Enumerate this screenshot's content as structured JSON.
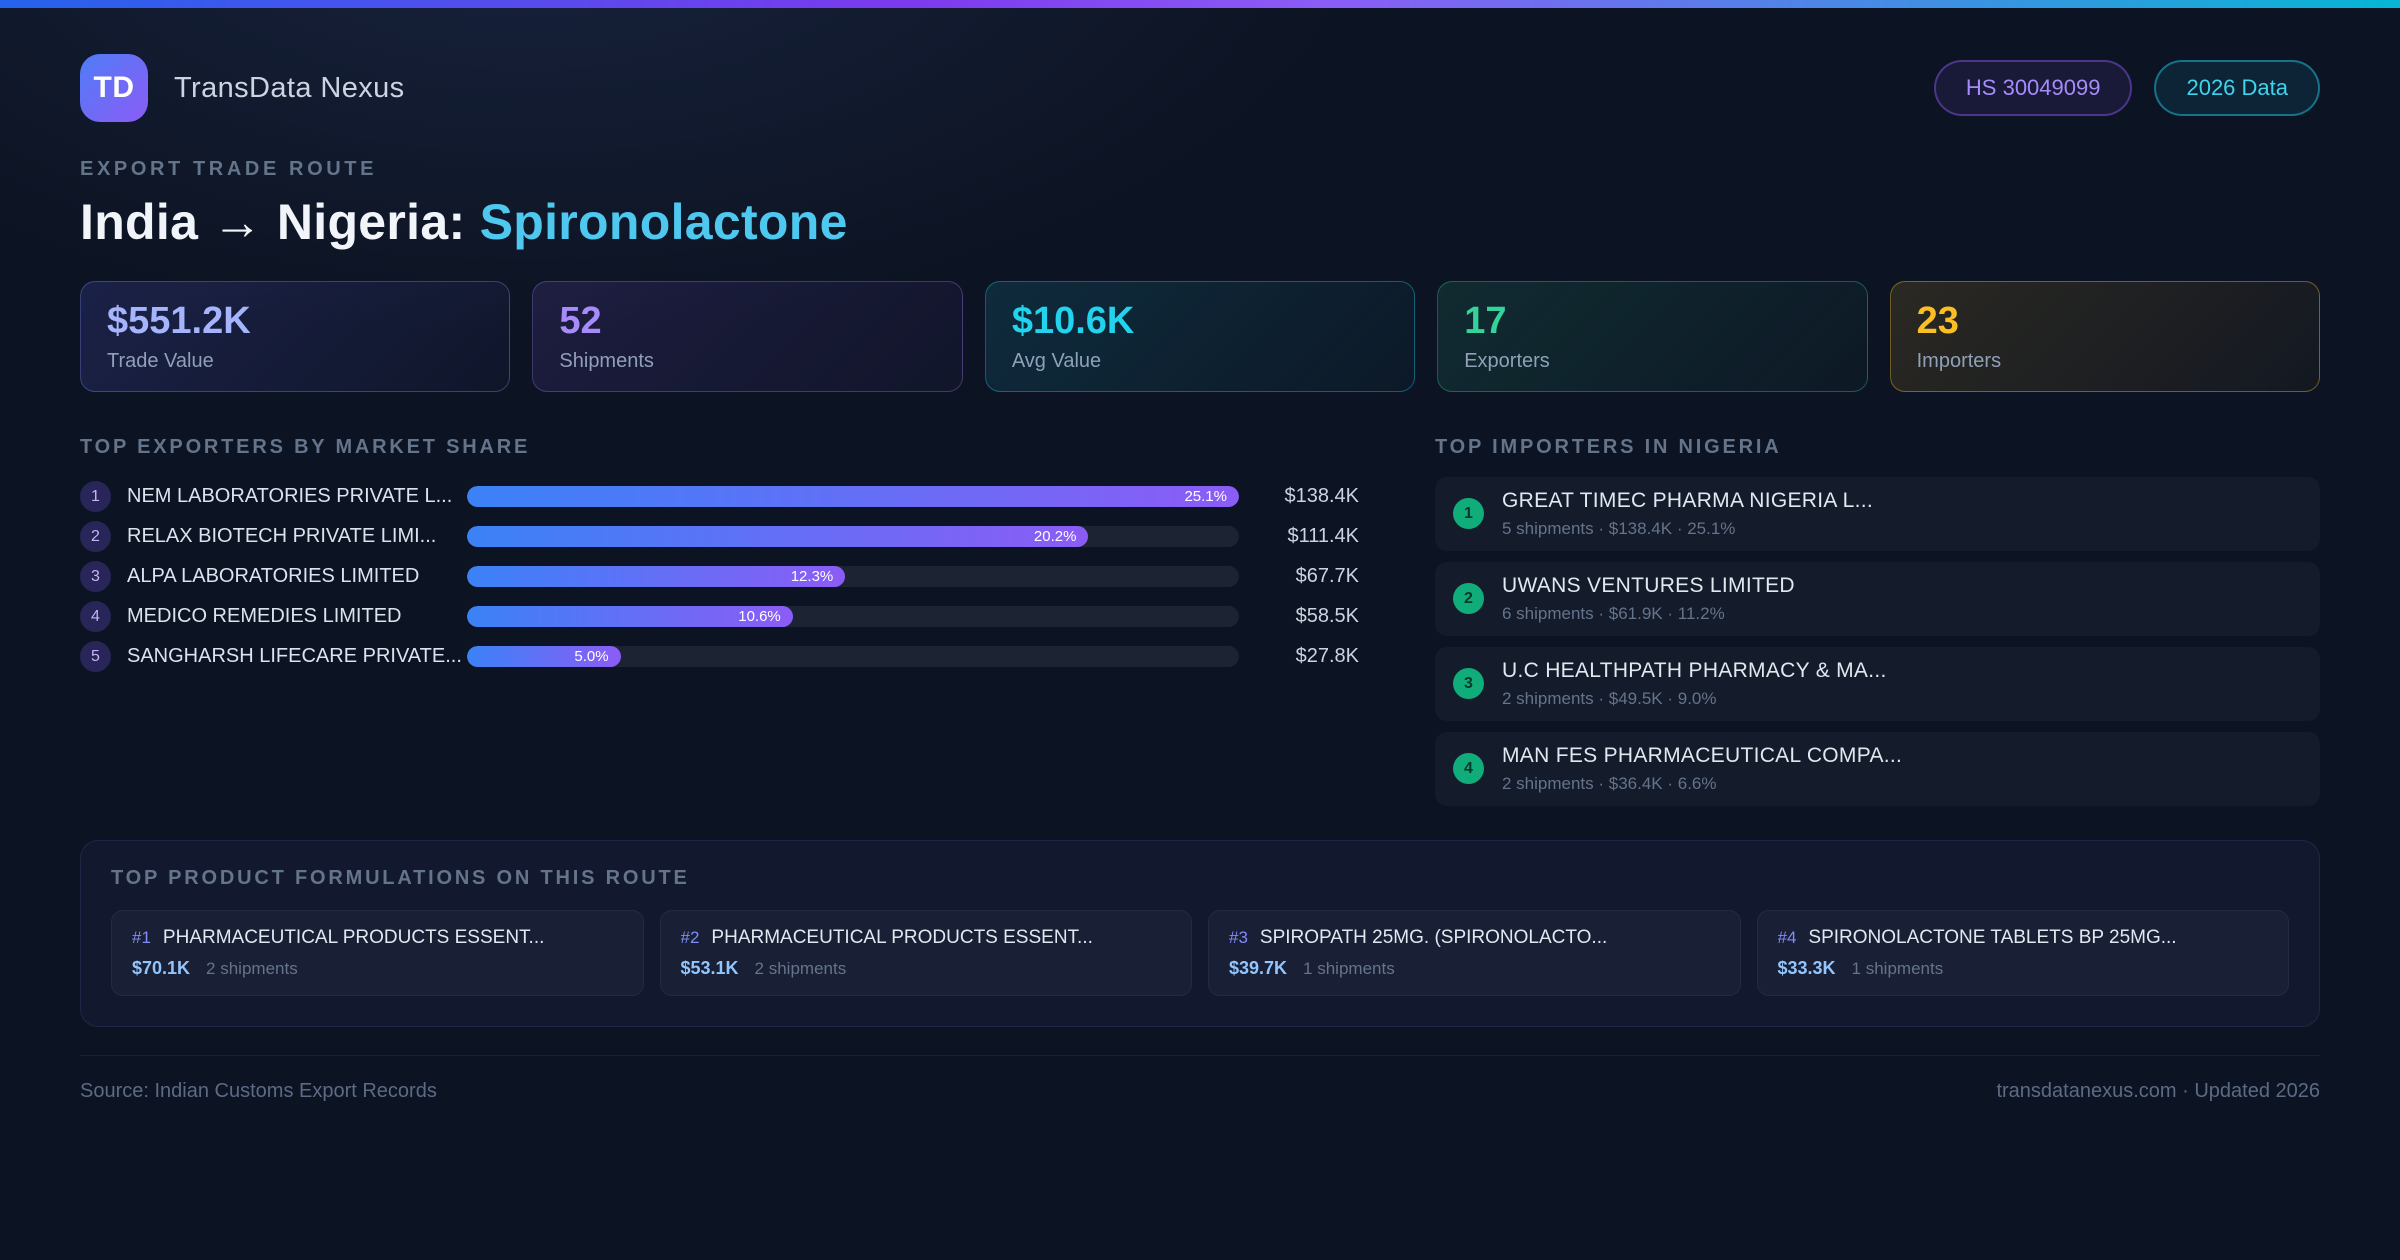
{
  "colors": {
    "accent_cyan": "#4fc8f0",
    "bar_gradient_start": "#3b82f6",
    "bar_gradient_end": "#8b5cf6",
    "stat_indigo": "#a5b4fc",
    "stat_purple": "#a78bfa",
    "stat_cyan": "#22d3ee",
    "stat_green": "#34d399",
    "stat_amber": "#fbbf24",
    "importer_rank_green": "#10b981"
  },
  "header": {
    "logo_text": "TD",
    "app_name": "TransData Nexus",
    "badges": [
      {
        "label": "HS 30049099"
      },
      {
        "label": "2026 Data"
      }
    ]
  },
  "hero": {
    "eyebrow": "EXPORT TRADE ROUTE",
    "title_main": "India → Nigeria: ",
    "title_accent": "Spironolactone"
  },
  "stats": [
    {
      "value": "$551.2K",
      "label": "Trade Value"
    },
    {
      "value": "52",
      "label": "Shipments"
    },
    {
      "value": "$10.6K",
      "label": "Avg Value"
    },
    {
      "value": "17",
      "label": "Exporters"
    },
    {
      "value": "23",
      "label": "Importers"
    }
  ],
  "exporters": {
    "title": "TOP EXPORTERS BY MARKET SHARE",
    "rows": [
      {
        "rank": "1",
        "name": "NEM LABORATORIES PRIVATE L...",
        "share_pct": 25.1,
        "share_label": "25.1%",
        "value": "$138.4K"
      },
      {
        "rank": "2",
        "name": "RELAX BIOTECH PRIVATE LIMI...",
        "share_pct": 20.2,
        "share_label": "20.2%",
        "value": "$111.4K"
      },
      {
        "rank": "3",
        "name": "ALPA LABORATORIES LIMITED",
        "share_pct": 12.3,
        "share_label": "12.3%",
        "value": "$67.7K"
      },
      {
        "rank": "4",
        "name": "MEDICO REMEDIES LIMITED",
        "share_pct": 10.6,
        "share_label": "10.6%",
        "value": "$58.5K"
      },
      {
        "rank": "5",
        "name": "SANGHARSH LIFECARE PRIVATE...",
        "share_pct": 5.0,
        "share_label": "5.0%",
        "value": "$27.8K"
      }
    ]
  },
  "importers": {
    "title": "TOP IMPORTERS IN NIGERIA",
    "rows": [
      {
        "rank": "1",
        "name": "GREAT TIMEC PHARMA NIGERIA L...",
        "details": "5 shipments · $138.4K · 25.1%"
      },
      {
        "rank": "2",
        "name": "UWANS VENTURES LIMITED",
        "details": "6 shipments · $61.9K · 11.2%"
      },
      {
        "rank": "3",
        "name": "U.C HEALTHPATH PHARMACY & MA...",
        "details": "2 shipments · $49.5K · 9.0%"
      },
      {
        "rank": "4",
        "name": "MAN FES PHARMACEUTICAL COMPA...",
        "details": "2 shipments · $36.4K · 6.6%"
      }
    ]
  },
  "products": {
    "title": "TOP PRODUCT FORMULATIONS ON THIS ROUTE",
    "cards": [
      {
        "rank": "#1",
        "name": "PHARMACEUTICAL PRODUCTS ESSENT...",
        "value": "$70.1K",
        "shipments": "2 shipments"
      },
      {
        "rank": "#2",
        "name": "PHARMACEUTICAL PRODUCTS ESSENT...",
        "value": "$53.1K",
        "shipments": "2 shipments"
      },
      {
        "rank": "#3",
        "name": "SPIROPATH 25MG. (SPIRONOLACTO...",
        "value": "$39.7K",
        "shipments": "1 shipments"
      },
      {
        "rank": "#4",
        "name": "SPIRONOLACTONE TABLETS BP 25MG...",
        "value": "$33.3K",
        "shipments": "1 shipments"
      }
    ]
  },
  "footer": {
    "source": "Source: Indian Customs Export Records",
    "meta": "transdatanexus.com · Updated 2026"
  },
  "chart_data": {
    "type": "bar",
    "orientation": "horizontal",
    "title": "TOP EXPORTERS BY MARKET SHARE",
    "categories": [
      "NEM LABORATORIES PRIVATE L...",
      "RELAX BIOTECH PRIVATE LIMI...",
      "ALPA LABORATORIES LIMITED",
      "MEDICO REMEDIES LIMITED",
      "SANGHARSH LIFECARE PRIVATE..."
    ],
    "series": [
      {
        "name": "Market share %",
        "values": [
          25.1,
          20.2,
          12.3,
          10.6,
          5.0
        ]
      },
      {
        "name": "Trade value",
        "values": [
          "$138.4K",
          "$111.4K",
          "$67.7K",
          "$58.5K",
          "$27.8K"
        ]
      }
    ],
    "xlim": [
      0,
      25.1
    ],
    "legend": false,
    "grid": false
  }
}
